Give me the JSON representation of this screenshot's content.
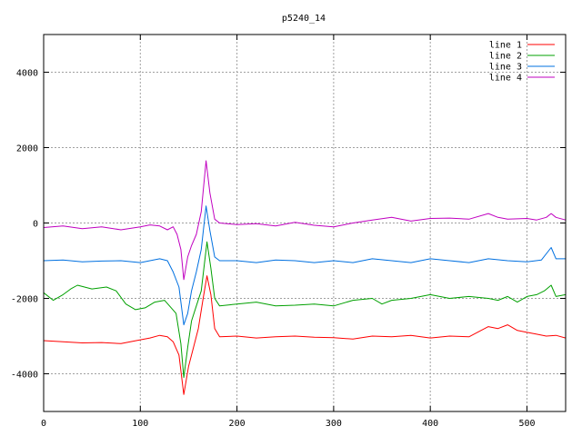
{
  "chart_data": {
    "type": "line",
    "title": "p5240_14",
    "xlabel": "",
    "ylabel": "",
    "xlim": [
      0,
      540
    ],
    "ylim": [
      -5000,
      5000
    ],
    "x_ticks": [
      0,
      100,
      200,
      300,
      400,
      500
    ],
    "y_ticks": [
      -4000,
      -2000,
      0,
      2000,
      4000
    ],
    "grid": true,
    "legend_position": "top-right",
    "series": [
      {
        "name": "line 1",
        "color": "#ff0000",
        "points": [
          [
            0,
            -3120
          ],
          [
            20,
            -3150
          ],
          [
            40,
            -3180
          ],
          [
            60,
            -3170
          ],
          [
            80,
            -3200
          ],
          [
            100,
            -3100
          ],
          [
            110,
            -3050
          ],
          [
            120,
            -2980
          ],
          [
            128,
            -3020
          ],
          [
            134,
            -3150
          ],
          [
            140,
            -3500
          ],
          [
            145,
            -4550
          ],
          [
            150,
            -3800
          ],
          [
            155,
            -3300
          ],
          [
            160,
            -2800
          ],
          [
            165,
            -2000
          ],
          [
            169,
            -1400
          ],
          [
            173,
            -1900
          ],
          [
            177,
            -2800
          ],
          [
            182,
            -3020
          ],
          [
            200,
            -3000
          ],
          [
            220,
            -3050
          ],
          [
            240,
            -3020
          ],
          [
            260,
            -3000
          ],
          [
            280,
            -3030
          ],
          [
            300,
            -3040
          ],
          [
            320,
            -3080
          ],
          [
            340,
            -3000
          ],
          [
            360,
            -3020
          ],
          [
            380,
            -2980
          ],
          [
            400,
            -3050
          ],
          [
            420,
            -3000
          ],
          [
            440,
            -3020
          ],
          [
            460,
            -2750
          ],
          [
            470,
            -2800
          ],
          [
            480,
            -2700
          ],
          [
            490,
            -2850
          ],
          [
            500,
            -2900
          ],
          [
            510,
            -2950
          ],
          [
            520,
            -3000
          ],
          [
            530,
            -2980
          ],
          [
            540,
            -3050
          ]
        ]
      },
      {
        "name": "line 2",
        "color": "#00a000",
        "points": [
          [
            0,
            -1850
          ],
          [
            10,
            -2050
          ],
          [
            20,
            -1900
          ],
          [
            28,
            -1750
          ],
          [
            35,
            -1650
          ],
          [
            50,
            -1750
          ],
          [
            65,
            -1700
          ],
          [
            75,
            -1800
          ],
          [
            85,
            -2150
          ],
          [
            95,
            -2300
          ],
          [
            105,
            -2250
          ],
          [
            115,
            -2100
          ],
          [
            125,
            -2050
          ],
          [
            132,
            -2250
          ],
          [
            137,
            -2400
          ],
          [
            142,
            -3200
          ],
          [
            145,
            -4100
          ],
          [
            149,
            -3300
          ],
          [
            153,
            -2600
          ],
          [
            158,
            -2200
          ],
          [
            163,
            -1800
          ],
          [
            169,
            -500
          ],
          [
            173,
            -1200
          ],
          [
            177,
            -2000
          ],
          [
            182,
            -2200
          ],
          [
            200,
            -2150
          ],
          [
            220,
            -2100
          ],
          [
            240,
            -2200
          ],
          [
            260,
            -2180
          ],
          [
            280,
            -2150
          ],
          [
            300,
            -2200
          ],
          [
            320,
            -2050
          ],
          [
            340,
            -2000
          ],
          [
            350,
            -2150
          ],
          [
            360,
            -2050
          ],
          [
            380,
            -2000
          ],
          [
            400,
            -1900
          ],
          [
            420,
            -2000
          ],
          [
            440,
            -1950
          ],
          [
            460,
            -2000
          ],
          [
            470,
            -2050
          ],
          [
            480,
            -1950
          ],
          [
            490,
            -2100
          ],
          [
            500,
            -1950
          ],
          [
            510,
            -1900
          ],
          [
            518,
            -1800
          ],
          [
            525,
            -1650
          ],
          [
            530,
            -1950
          ],
          [
            540,
            -1900
          ]
        ]
      },
      {
        "name": "line 3",
        "color": "#0070e0",
        "points": [
          [
            0,
            -1000
          ],
          [
            20,
            -980
          ],
          [
            40,
            -1030
          ],
          [
            60,
            -1010
          ],
          [
            80,
            -1000
          ],
          [
            100,
            -1050
          ],
          [
            110,
            -1000
          ],
          [
            120,
            -950
          ],
          [
            128,
            -1000
          ],
          [
            134,
            -1300
          ],
          [
            140,
            -1700
          ],
          [
            145,
            -2700
          ],
          [
            149,
            -2400
          ],
          [
            153,
            -1800
          ],
          [
            158,
            -1300
          ],
          [
            163,
            -700
          ],
          [
            168,
            450
          ],
          [
            172,
            -200
          ],
          [
            177,
            -900
          ],
          [
            182,
            -1000
          ],
          [
            200,
            -1000
          ],
          [
            220,
            -1050
          ],
          [
            240,
            -980
          ],
          [
            260,
            -1000
          ],
          [
            280,
            -1050
          ],
          [
            300,
            -1000
          ],
          [
            320,
            -1050
          ],
          [
            340,
            -950
          ],
          [
            360,
            -1000
          ],
          [
            380,
            -1050
          ],
          [
            400,
            -950
          ],
          [
            420,
            -1000
          ],
          [
            440,
            -1050
          ],
          [
            460,
            -950
          ],
          [
            480,
            -1000
          ],
          [
            500,
            -1030
          ],
          [
            515,
            -980
          ],
          [
            525,
            -650
          ],
          [
            530,
            -950
          ],
          [
            540,
            -950
          ]
        ]
      },
      {
        "name": "line 4",
        "color": "#c000c0",
        "points": [
          [
            0,
            -120
          ],
          [
            20,
            -80
          ],
          [
            40,
            -150
          ],
          [
            60,
            -100
          ],
          [
            80,
            -180
          ],
          [
            100,
            -100
          ],
          [
            110,
            -50
          ],
          [
            120,
            -80
          ],
          [
            128,
            -180
          ],
          [
            134,
            -100
          ],
          [
            138,
            -300
          ],
          [
            142,
            -700
          ],
          [
            145,
            -1500
          ],
          [
            149,
            -900
          ],
          [
            153,
            -600
          ],
          [
            158,
            -300
          ],
          [
            163,
            300
          ],
          [
            168,
            1650
          ],
          [
            172,
            800
          ],
          [
            177,
            100
          ],
          [
            182,
            0
          ],
          [
            200,
            -40
          ],
          [
            220,
            -20
          ],
          [
            240,
            -80
          ],
          [
            260,
            20
          ],
          [
            280,
            -60
          ],
          [
            300,
            -100
          ],
          [
            320,
            0
          ],
          [
            340,
            80
          ],
          [
            360,
            150
          ],
          [
            380,
            50
          ],
          [
            400,
            120
          ],
          [
            420,
            130
          ],
          [
            440,
            100
          ],
          [
            460,
            250
          ],
          [
            470,
            150
          ],
          [
            480,
            100
          ],
          [
            500,
            120
          ],
          [
            510,
            80
          ],
          [
            520,
            150
          ],
          [
            525,
            250
          ],
          [
            530,
            150
          ],
          [
            540,
            80
          ]
        ]
      }
    ]
  }
}
